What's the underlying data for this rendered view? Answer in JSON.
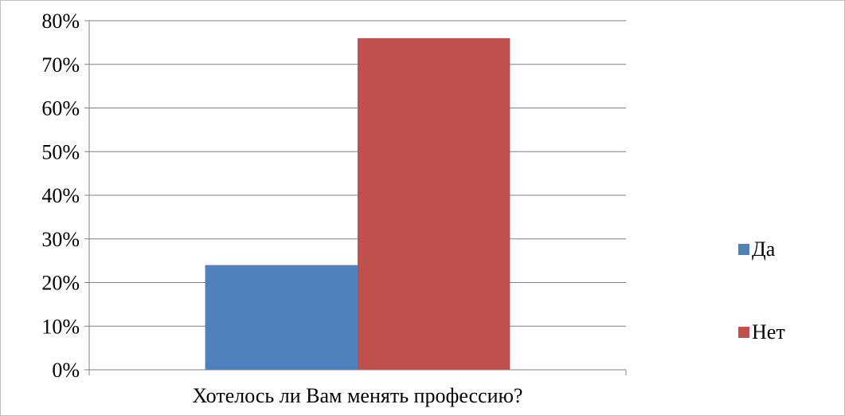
{
  "chart_data": {
    "type": "bar",
    "title": "",
    "xlabel": "",
    "ylabel": "",
    "categories": [
      "Хотелось ли Вам менять профессию?"
    ],
    "series": [
      {
        "name": "Да",
        "values": [
          24
        ],
        "color": "#4f81bd"
      },
      {
        "name": "Нет",
        "values": [
          76
        ],
        "color": "#c0504d"
      }
    ],
    "ylim": [
      0,
      80
    ],
    "yticks": [
      0,
      10,
      20,
      30,
      40,
      50,
      60,
      70,
      80
    ],
    "ytick_labels": [
      "0%",
      "10%",
      "20%",
      "30%",
      "40%",
      "50%",
      "60%",
      "70%",
      "80%"
    ],
    "grid": true,
    "legend_position": "right"
  }
}
